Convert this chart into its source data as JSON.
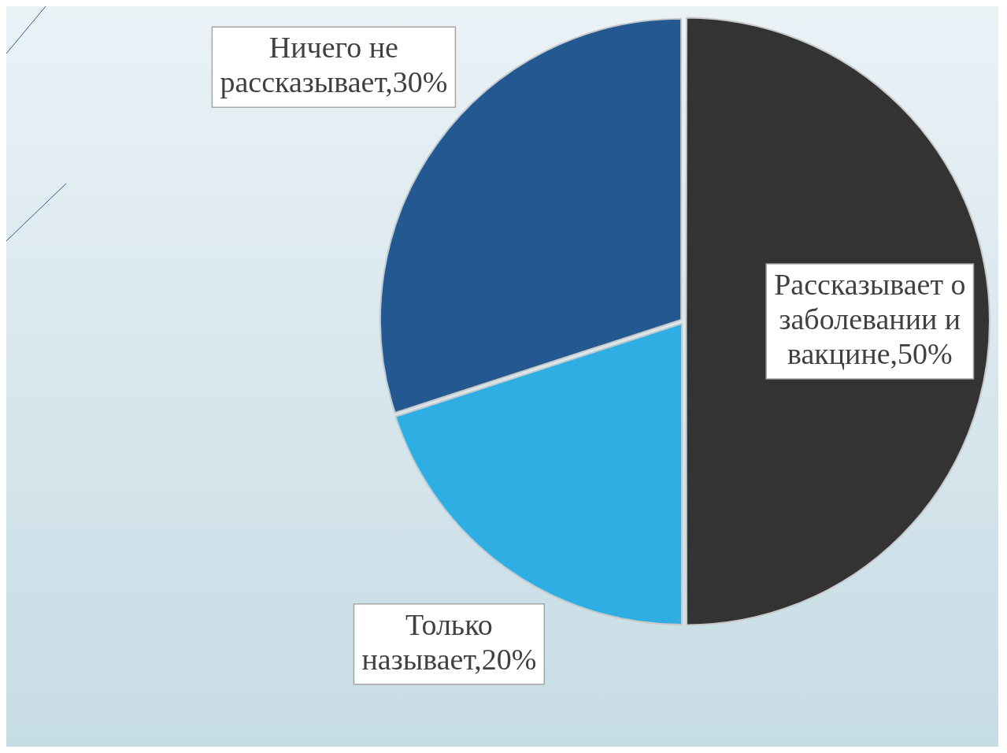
{
  "chart_data": {
    "type": "pie",
    "categories": [
      "Рассказывает о заболевании и вакцине",
      "Только называет",
      "Ничего не рассказывает"
    ],
    "values": [
      50,
      20,
      30
    ],
    "colors": [
      "#333333",
      "#2eaee3",
      "#245891"
    ],
    "value_labels": [
      "50%",
      "20%",
      "30%"
    ],
    "legend": false
  }
}
